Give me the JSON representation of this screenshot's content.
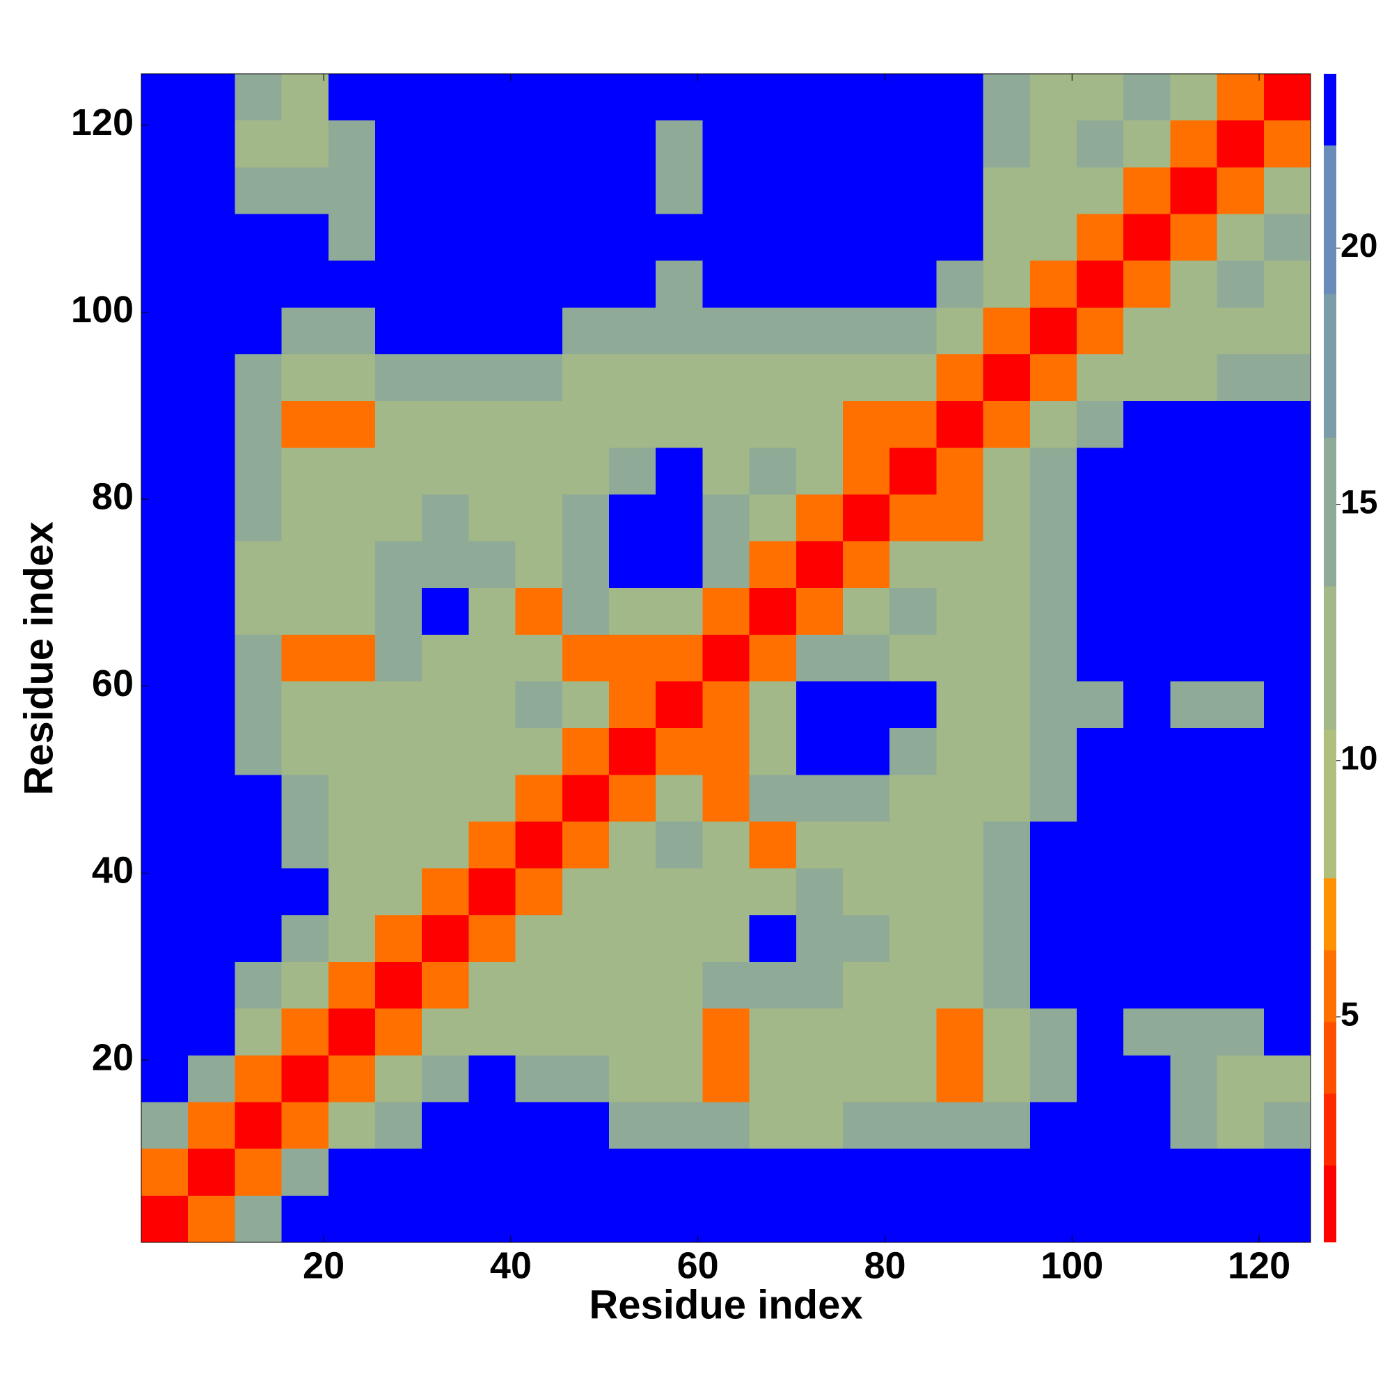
{
  "chart_data": {
    "type": "heatmap",
    "xlabel": "Residue index",
    "ylabel": "Residue index",
    "x": [
      3,
      8,
      13,
      18,
      23,
      28,
      33,
      38,
      43,
      48,
      53,
      58,
      63,
      68,
      73,
      78,
      83,
      88,
      93,
      98,
      103,
      108,
      113,
      118,
      123
    ],
    "y": [
      3,
      8,
      13,
      18,
      23,
      28,
      33,
      38,
      43,
      48,
      53,
      58,
      63,
      68,
      73,
      78,
      83,
      88,
      93,
      98,
      103,
      108,
      113,
      118,
      123
    ],
    "xlim": [
      0.5,
      125.5
    ],
    "ylim": [
      0.5,
      125.5
    ],
    "xticks": [
      20,
      40,
      60,
      80,
      100,
      120
    ],
    "yticks": [
      20,
      40,
      60,
      80,
      100,
      120
    ],
    "levels": [
      0.6,
      2.1,
      3.5,
      4.9,
      6.3,
      7.7,
      10.6,
      13.4,
      16.3,
      19.1,
      22,
      23.4
    ],
    "colors": [
      "#ff0000",
      "#ff2a00",
      "#ff5000",
      "#ff7000",
      "#ff9000",
      "#b0c07c",
      "#a2b888",
      "#90aa98",
      "#7c9caa",
      "#6a8cba",
      "#0000ff"
    ],
    "zticks": [
      5,
      10,
      15,
      20
    ],
    "z": [
      [
        1,
        6,
        16,
        23,
        23,
        23,
        23,
        23,
        23,
        23,
        23,
        23,
        23,
        23,
        23,
        23,
        23,
        23,
        23,
        23,
        23,
        23,
        23,
        23,
        23
      ],
      [
        6,
        1,
        6,
        16,
        23,
        23,
        23,
        23,
        23,
        23,
        23,
        23,
        23,
        23,
        23,
        23,
        23,
        23,
        23,
        23,
        23,
        23,
        23,
        23,
        23
      ],
      [
        16,
        6,
        1,
        6,
        11,
        16,
        23,
        23,
        23,
        23,
        16,
        16,
        16,
        11,
        11,
        16,
        16,
        16,
        16,
        23,
        23,
        23,
        16,
        11,
        16
      ],
      [
        23,
        16,
        6,
        1,
        6,
        11,
        16,
        23,
        16,
        16,
        11,
        11,
        6,
        11,
        11,
        11,
        11,
        6,
        11,
        16,
        23,
        23,
        16,
        11,
        11
      ],
      [
        23,
        23,
        11,
        6,
        1,
        6,
        11,
        11,
        11,
        11,
        11,
        11,
        6,
        11,
        11,
        11,
        11,
        6,
        11,
        16,
        23,
        16,
        16,
        16,
        23
      ],
      [
        23,
        23,
        16,
        11,
        6,
        1,
        6,
        11,
        11,
        11,
        11,
        11,
        16,
        16,
        16,
        11,
        11,
        11,
        16,
        23,
        23,
        23,
        23,
        23,
        23
      ],
      [
        23,
        23,
        23,
        16,
        11,
        6,
        1,
        6,
        11,
        11,
        11,
        11,
        11,
        23,
        16,
        16,
        11,
        11,
        16,
        23,
        23,
        23,
        23,
        23,
        23
      ],
      [
        23,
        23,
        23,
        23,
        11,
        11,
        6,
        1,
        6,
        11,
        11,
        11,
        11,
        11,
        16,
        11,
        11,
        11,
        16,
        23,
        23,
        23,
        23,
        23,
        23
      ],
      [
        23,
        23,
        23,
        16,
        11,
        11,
        11,
        6,
        1,
        6,
        11,
        16,
        11,
        6,
        11,
        11,
        11,
        11,
        16,
        23,
        23,
        23,
        23,
        23,
        23
      ],
      [
        23,
        23,
        23,
        16,
        11,
        11,
        11,
        11,
        6,
        1,
        6,
        11,
        6,
        16,
        16,
        16,
        11,
        11,
        11,
        16,
        23,
        23,
        23,
        23,
        23
      ],
      [
        23,
        23,
        16,
        11,
        11,
        11,
        11,
        11,
        11,
        6,
        1,
        6,
        6,
        11,
        23,
        23,
        16,
        11,
        11,
        16,
        23,
        23,
        23,
        23,
        23
      ],
      [
        23,
        23,
        16,
        11,
        11,
        11,
        11,
        11,
        16,
        11,
        6,
        1,
        6,
        11,
        23,
        23,
        23,
        11,
        11,
        16,
        16,
        23,
        16,
        16,
        23
      ],
      [
        23,
        23,
        16,
        6,
        6,
        16,
        11,
        11,
        11,
        6,
        6,
        6,
        1,
        6,
        16,
        16,
        11,
        11,
        11,
        16,
        23,
        23,
        23,
        23,
        23
      ],
      [
        23,
        23,
        11,
        11,
        11,
        16,
        23,
        11,
        6,
        16,
        11,
        11,
        6,
        1,
        6,
        11,
        16,
        11,
        11,
        16,
        23,
        23,
        23,
        23,
        23
      ],
      [
        23,
        23,
        11,
        11,
        11,
        16,
        16,
        16,
        11,
        16,
        23,
        23,
        16,
        6,
        1,
        6,
        11,
        11,
        11,
        16,
        23,
        23,
        23,
        23,
        23
      ],
      [
        23,
        23,
        16,
        11,
        11,
        11,
        16,
        11,
        11,
        16,
        23,
        23,
        16,
        11,
        6,
        1,
        6,
        6,
        11,
        16,
        23,
        23,
        23,
        23,
        23
      ],
      [
        23,
        23,
        16,
        11,
        11,
        11,
        11,
        11,
        11,
        11,
        16,
        23,
        11,
        16,
        11,
        6,
        1,
        6,
        11,
        16,
        23,
        23,
        23,
        23,
        23
      ],
      [
        23,
        23,
        16,
        6,
        6,
        11,
        11,
        11,
        11,
        11,
        11,
        11,
        11,
        11,
        11,
        6,
        6,
        1,
        6,
        11,
        16,
        23,
        23,
        23,
        23
      ],
      [
        23,
        23,
        16,
        11,
        11,
        16,
        16,
        16,
        16,
        11,
        11,
        11,
        11,
        11,
        11,
        11,
        11,
        6,
        1,
        6,
        11,
        11,
        11,
        16,
        16
      ],
      [
        23,
        23,
        23,
        16,
        16,
        23,
        23,
        23,
        23,
        16,
        16,
        16,
        16,
        16,
        16,
        16,
        16,
        11,
        6,
        1,
        6,
        11,
        11,
        11,
        11
      ],
      [
        23,
        23,
        23,
        23,
        23,
        23,
        23,
        23,
        23,
        23,
        23,
        16,
        23,
        23,
        23,
        23,
        23,
        16,
        11,
        6,
        1,
        6,
        11,
        16,
        11
      ],
      [
        23,
        23,
        23,
        23,
        16,
        23,
        23,
        23,
        23,
        23,
        23,
        23,
        23,
        23,
        23,
        23,
        23,
        23,
        11,
        11,
        6,
        1,
        6,
        11,
        16
      ],
      [
        23,
        23,
        16,
        16,
        16,
        23,
        23,
        23,
        23,
        23,
        23,
        16,
        23,
        23,
        23,
        23,
        23,
        23,
        11,
        11,
        11,
        6,
        1,
        6,
        11
      ],
      [
        23,
        23,
        11,
        11,
        16,
        23,
        23,
        23,
        23,
        23,
        23,
        16,
        23,
        23,
        23,
        23,
        23,
        23,
        16,
        11,
        16,
        11,
        6,
        1,
        6
      ],
      [
        23,
        23,
        16,
        11,
        23,
        23,
        23,
        23,
        23,
        23,
        23,
        23,
        23,
        23,
        23,
        23,
        23,
        23,
        16,
        11,
        11,
        16,
        11,
        6,
        1
      ]
    ]
  }
}
